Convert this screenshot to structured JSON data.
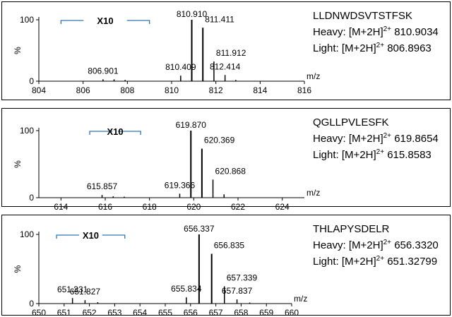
{
  "chart_data": [
    {
      "type": "line",
      "peptide": "LLDNWDSVTSTFSK",
      "heavy": {
        "prefix": "Heavy: [M+2H]",
        "charge": "2+",
        "mz": " 810.9034"
      },
      "light": {
        "prefix": "Light: [M+2H]",
        "charge": "2+",
        "mz": " 806.8963"
      },
      "xlabel": "m/z",
      "ylabel": "%",
      "xlim": [
        804,
        816
      ],
      "ylim": [
        0,
        100
      ],
      "xticks": [
        804,
        806,
        808,
        810,
        812,
        814,
        816
      ],
      "yticks": [
        0,
        100
      ],
      "zoom_label": "X10",
      "zoom_range": [
        805,
        809
      ],
      "peaks": [
        {
          "mz": 806.901,
          "y": 3,
          "label": "806.901"
        },
        {
          "mz": 807.4,
          "y": 3,
          "label": ""
        },
        {
          "mz": 807.9,
          "y": 2,
          "label": ""
        },
        {
          "mz": 810.409,
          "y": 9,
          "label": "810.409"
        },
        {
          "mz": 810.91,
          "y": 100,
          "label": "810.910"
        },
        {
          "mz": 811.411,
          "y": 87,
          "label": "811.411"
        },
        {
          "mz": 811.912,
          "y": 32,
          "label": "811.912"
        },
        {
          "mz": 812.414,
          "y": 10,
          "label": "812.414"
        },
        {
          "mz": 812.9,
          "y": 2,
          "label": ""
        }
      ]
    },
    {
      "type": "line",
      "peptide": "QGLLPVLESFK",
      "heavy": {
        "prefix": "Heavy: [M+2H]",
        "charge": "2+",
        "mz": " 619.8654"
      },
      "light": {
        "prefix": "Light: [M+2H]",
        "charge": "2+",
        "mz": " 615.8583"
      },
      "xlabel": "m/z",
      "ylabel": "%",
      "xlim": [
        613,
        625
      ],
      "ylim": [
        0,
        100
      ],
      "xticks": [
        614,
        616,
        618,
        620,
        622,
        624
      ],
      "yticks": [
        0,
        100
      ],
      "zoom_label": "X10",
      "zoom_range": [
        615.3,
        617.6
      ],
      "peaks": [
        {
          "mz": 615.857,
          "y": 4,
          "label": "615.857"
        },
        {
          "mz": 616.36,
          "y": 2,
          "label": ""
        },
        {
          "mz": 616.86,
          "y": 1.5,
          "label": ""
        },
        {
          "mz": 619.366,
          "y": 6,
          "label": "619.366"
        },
        {
          "mz": 619.87,
          "y": 100,
          "label": "619.870"
        },
        {
          "mz": 620.369,
          "y": 73,
          "label": "620.369"
        },
        {
          "mz": 620.868,
          "y": 27,
          "label": "620.868"
        },
        {
          "mz": 621.37,
          "y": 5,
          "label": ""
        }
      ]
    },
    {
      "type": "line",
      "peptide": "THLAPYSDELR",
      "heavy": {
        "prefix": "Heavy: [M+2H]",
        "charge": "2+",
        "mz": " 656.3320"
      },
      "light": {
        "prefix": "Light: [M+2H]",
        "charge": "2+",
        "mz": " 651.32799"
      },
      "xlabel": "m/z",
      "ylabel": "%",
      "xlim": [
        650,
        660
      ],
      "ylim": [
        0,
        100
      ],
      "xticks": [
        650,
        651,
        652,
        653,
        654,
        655,
        656,
        657,
        658,
        659,
        660
      ],
      "yticks": [
        0,
        100
      ],
      "zoom_label": "X10",
      "zoom_range": [
        650.7,
        653.4
      ],
      "peaks": [
        {
          "mz": 651.331,
          "y": 8,
          "label": "651.331"
        },
        {
          "mz": 651.827,
          "y": 5,
          "label": "651.827"
        },
        {
          "mz": 652.33,
          "y": 2,
          "label": ""
        },
        {
          "mz": 655.834,
          "y": 9,
          "label": "655.834"
        },
        {
          "mz": 656.337,
          "y": 100,
          "label": "656.337"
        },
        {
          "mz": 656.835,
          "y": 72,
          "label": "656.835"
        },
        {
          "mz": 657.339,
          "y": 25,
          "label": "657.339"
        },
        {
          "mz": 657.837,
          "y": 6,
          "label": "657.837"
        },
        {
          "mz": 658.34,
          "y": 1.5,
          "label": ""
        }
      ]
    }
  ]
}
